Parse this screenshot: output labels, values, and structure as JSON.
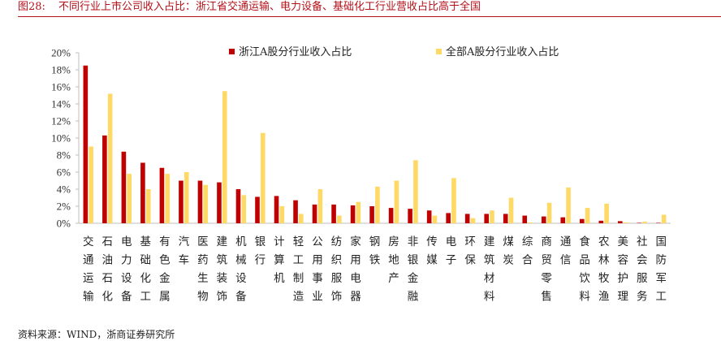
{
  "header": {
    "figure_number": "图28:",
    "title": "不同行业上市公司收入占比：浙江省交通运输、电力设备、基础化工行业营收占比高于全国"
  },
  "footer": {
    "source": "资料来源：WIND，浙商证券研究所"
  },
  "colors": {
    "zhejiang": "#c00000",
    "national": "#ffd966",
    "title": "#b3121a"
  },
  "chart_data": {
    "type": "bar",
    "title": "",
    "xlabel": "",
    "ylabel": "",
    "ylim": [
      0,
      20
    ],
    "yticks": [
      "0%",
      "2%",
      "4%",
      "6%",
      "8%",
      "10%",
      "12%",
      "14%",
      "16%",
      "18%",
      "20%"
    ],
    "grid": false,
    "legend_position": "top",
    "categories": [
      "交通运输",
      "石油石化",
      "电力设备",
      "基础化工",
      "有色金属",
      "汽车",
      "医药生物",
      "建筑装饰",
      "机械设备",
      "银行",
      "计算机",
      "轻工制造",
      "公用事业",
      "纺织服饰",
      "家用电器",
      "钢铁",
      "房地产",
      "非银金融",
      "传媒",
      "电子",
      "环保",
      "建筑材料",
      "煤炭",
      "综合",
      "商贸零售",
      "通信",
      "食品饮料",
      "农林牧渔",
      "美容护理",
      "社会服务",
      "国防军工"
    ],
    "series": [
      {
        "name": "浙江A股分行业收入占比",
        "values": [
          18.5,
          10.3,
          8.4,
          7.1,
          6.5,
          5.0,
          5.0,
          4.8,
          4.0,
          3.1,
          3.2,
          2.7,
          2.2,
          2.2,
          2.1,
          2.0,
          1.8,
          1.7,
          1.5,
          1.2,
          1.1,
          1.1,
          1.1,
          0.9,
          0.8,
          0.7,
          0.5,
          0.3,
          0.25,
          0.05,
          0.05
        ]
      },
      {
        "name": "全部A股分行业收入占比",
        "values": [
          9.0,
          15.2,
          5.8,
          4.0,
          5.8,
          6.0,
          4.5,
          15.5,
          3.3,
          10.6,
          2.0,
          1.1,
          4.0,
          0.9,
          2.5,
          4.3,
          5.0,
          7.4,
          0.9,
          5.3,
          0.6,
          1.5,
          3.0,
          0.1,
          2.4,
          4.2,
          1.8,
          2.3,
          0.1,
          0.2,
          1.0
        ]
      }
    ]
  }
}
